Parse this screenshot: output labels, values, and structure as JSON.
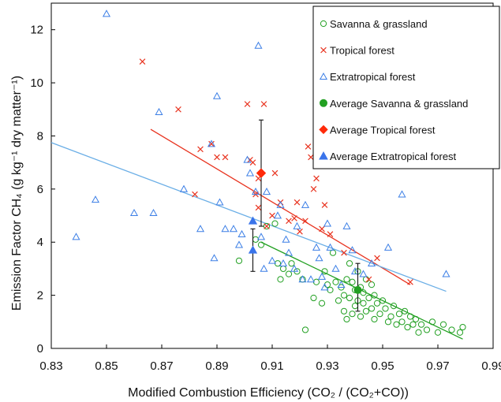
{
  "chart_data": {
    "type": "scatter",
    "xlabel": "Modified Combustion Efficiency (CO₂ / (CO₂+CO))",
    "ylabel": "Emission Factor CH₄ (g kg⁻¹ dry matter⁻¹)",
    "xlim": [
      0.83,
      0.99
    ],
    "ylim": [
      0,
      13
    ],
    "x_ticks": [
      "0.83",
      "0.85",
      "0.87",
      "0.89",
      "0.91",
      "0.93",
      "0.95",
      "0.97",
      "0.99"
    ],
    "y_ticks": [
      "0",
      "2",
      "4",
      "6",
      "8",
      "10",
      "12"
    ],
    "grid": false,
    "legend_position": "top-right",
    "colors": {
      "savanna": "#22a022",
      "tropical": "#e8321e",
      "extratropical": "#3c7fe6",
      "tropical_avg": "#ff2a0a",
      "extratropical_avg": "#3a74ea",
      "extratropical_fit": "#6aaee6"
    },
    "series": [
      {
        "name": "Savanna & grassland",
        "marker": "open-circle",
        "color": "#22a022",
        "points": [
          [
            0.898,
            3.3
          ],
          [
            0.904,
            4.1
          ],
          [
            0.906,
            3.9
          ],
          [
            0.908,
            4.6
          ],
          [
            0.911,
            4.7
          ],
          [
            0.912,
            3.2
          ],
          [
            0.913,
            2.6
          ],
          [
            0.914,
            3.0
          ],
          [
            0.916,
            2.8
          ],
          [
            0.917,
            3.2
          ],
          [
            0.919,
            2.9
          ],
          [
            0.921,
            2.6
          ],
          [
            0.922,
            0.7
          ],
          [
            0.925,
            1.9
          ],
          [
            0.926,
            2.5
          ],
          [
            0.928,
            1.7
          ],
          [
            0.929,
            2.9
          ],
          [
            0.93,
            2.4
          ],
          [
            0.931,
            2.2
          ],
          [
            0.932,
            3.6
          ],
          [
            0.933,
            2.5
          ],
          [
            0.934,
            1.8
          ],
          [
            0.935,
            2.3
          ],
          [
            0.936,
            1.4
          ],
          [
            0.936,
            2.0
          ],
          [
            0.937,
            1.1
          ],
          [
            0.937,
            2.6
          ],
          [
            0.938,
            1.9
          ],
          [
            0.938,
            3.2
          ],
          [
            0.939,
            1.3
          ],
          [
            0.939,
            2.5
          ],
          [
            0.94,
            1.6
          ],
          [
            0.94,
            2.2
          ],
          [
            0.941,
            1.8
          ],
          [
            0.941,
            2.9
          ],
          [
            0.942,
            1.2
          ],
          [
            0.942,
            2.3
          ],
          [
            0.943,
            1.7
          ],
          [
            0.943,
            2.1
          ],
          [
            0.944,
            1.4
          ],
          [
            0.944,
            2.6
          ],
          [
            0.945,
            1.9
          ],
          [
            0.946,
            1.5
          ],
          [
            0.946,
            2.4
          ],
          [
            0.947,
            1.1
          ],
          [
            0.947,
            2.0
          ],
          [
            0.948,
            1.7
          ],
          [
            0.949,
            1.3
          ],
          [
            0.95,
            1.8
          ],
          [
            0.951,
            1.5
          ],
          [
            0.952,
            1.0
          ],
          [
            0.953,
            1.2
          ],
          [
            0.954,
            1.6
          ],
          [
            0.955,
            0.9
          ],
          [
            0.956,
            1.3
          ],
          [
            0.957,
            1.0
          ],
          [
            0.958,
            1.4
          ],
          [
            0.959,
            0.8
          ],
          [
            0.96,
            1.2
          ],
          [
            0.961,
            0.9
          ],
          [
            0.962,
            1.1
          ],
          [
            0.963,
            0.6
          ],
          [
            0.964,
            0.9
          ],
          [
            0.966,
            0.7
          ],
          [
            0.968,
            1.0
          ],
          [
            0.97,
            0.6
          ],
          [
            0.972,
            0.9
          ],
          [
            0.975,
            0.7
          ],
          [
            0.978,
            0.6
          ],
          [
            0.979,
            0.8
          ]
        ]
      },
      {
        "name": "Tropical forest",
        "marker": "x",
        "color": "#e8321e",
        "points": [
          [
            0.863,
            10.8
          ],
          [
            0.876,
            9.0
          ],
          [
            0.882,
            5.8
          ],
          [
            0.884,
            7.5
          ],
          [
            0.888,
            7.7
          ],
          [
            0.89,
            7.2
          ],
          [
            0.893,
            7.2
          ],
          [
            0.901,
            9.2
          ],
          [
            0.902,
            7.1
          ],
          [
            0.903,
            7.0
          ],
          [
            0.904,
            5.8
          ],
          [
            0.905,
            6.4
          ],
          [
            0.905,
            5.3
          ],
          [
            0.907,
            9.2
          ],
          [
            0.908,
            4.6
          ],
          [
            0.91,
            5.0
          ],
          [
            0.911,
            6.6
          ],
          [
            0.913,
            5.5
          ],
          [
            0.916,
            4.8
          ],
          [
            0.918,
            4.9
          ],
          [
            0.919,
            5.5
          ],
          [
            0.92,
            4.4
          ],
          [
            0.922,
            4.8
          ],
          [
            0.923,
            7.6
          ],
          [
            0.924,
            7.2
          ],
          [
            0.925,
            6.0
          ],
          [
            0.926,
            6.4
          ],
          [
            0.928,
            4.5
          ],
          [
            0.929,
            5.4
          ],
          [
            0.931,
            4.3
          ],
          [
            0.936,
            3.6
          ],
          [
            0.945,
            2.6
          ],
          [
            0.948,
            3.4
          ],
          [
            0.96,
            2.5
          ]
        ]
      },
      {
        "name": "Extratropical forest",
        "marker": "open-triangle",
        "color": "#3c7fe6",
        "points": [
          [
            0.839,
            4.2
          ],
          [
            0.846,
            5.6
          ],
          [
            0.85,
            12.6
          ],
          [
            0.86,
            5.1
          ],
          [
            0.867,
            5.1
          ],
          [
            0.869,
            8.9
          ],
          [
            0.878,
            6.0
          ],
          [
            0.884,
            4.5
          ],
          [
            0.888,
            7.7
          ],
          [
            0.889,
            3.4
          ],
          [
            0.89,
            9.5
          ],
          [
            0.891,
            5.5
          ],
          [
            0.893,
            4.5
          ],
          [
            0.896,
            4.5
          ],
          [
            0.898,
            3.9
          ],
          [
            0.899,
            4.3
          ],
          [
            0.901,
            7.1
          ],
          [
            0.902,
            6.6
          ],
          [
            0.904,
            5.9
          ],
          [
            0.905,
            11.4
          ],
          [
            0.906,
            4.2
          ],
          [
            0.907,
            3.0
          ],
          [
            0.908,
            5.9
          ],
          [
            0.91,
            3.3
          ],
          [
            0.912,
            5.0
          ],
          [
            0.913,
            5.4
          ],
          [
            0.914,
            3.2
          ],
          [
            0.915,
            4.1
          ],
          [
            0.916,
            3.6
          ],
          [
            0.918,
            3.0
          ],
          [
            0.919,
            4.6
          ],
          [
            0.921,
            2.6
          ],
          [
            0.922,
            5.4
          ],
          [
            0.924,
            2.6
          ],
          [
            0.926,
            3.8
          ],
          [
            0.927,
            3.4
          ],
          [
            0.928,
            2.7
          ],
          [
            0.929,
            2.3
          ],
          [
            0.93,
            4.7
          ],
          [
            0.931,
            3.8
          ],
          [
            0.933,
            3.0
          ],
          [
            0.935,
            2.4
          ],
          [
            0.937,
            4.6
          ],
          [
            0.939,
            3.7
          ],
          [
            0.94,
            2.9
          ],
          [
            0.943,
            2.8
          ],
          [
            0.946,
            3.2
          ],
          [
            0.952,
            3.8
          ],
          [
            0.957,
            5.8
          ],
          [
            0.973,
            2.8
          ]
        ]
      }
    ],
    "averages": [
      {
        "name": "Average Savanna & grassland",
        "marker": "filled-circle",
        "color": "#22a022",
        "x": 0.941,
        "y": 2.2,
        "err_low": 1.4,
        "err_high": 3.2
      },
      {
        "name": "Average Tropical forest",
        "marker": "filled-diamond",
        "color": "#ff2a0a",
        "x": 0.906,
        "y": 6.6,
        "err_low": 4.6,
        "err_high": 8.6
      },
      {
        "name": "Average Extratropical forest",
        "marker": "filled-triangle",
        "color": "#3a74ea",
        "x": 0.903,
        "y": 3.7,
        "err_low": 2.9,
        "err_high": 4.5
      }
    ],
    "avg_extra_second": {
      "x": 0.903,
      "y": 4.8
    },
    "fit_lines": [
      {
        "series": "Savanna & grassland",
        "color": "#22a022",
        "x0": 0.906,
        "y0": 4.0,
        "x1": 0.979,
        "y1": 0.35
      },
      {
        "series": "Tropical forest",
        "color": "#e8321e",
        "x0": 0.866,
        "y0": 8.25,
        "x1": 0.96,
        "y1": 2.4
      },
      {
        "series": "Extratropical forest",
        "color": "#6aaee6",
        "x0": 0.83,
        "y0": 7.75,
        "x1": 0.973,
        "y1": 2.15
      }
    ]
  }
}
